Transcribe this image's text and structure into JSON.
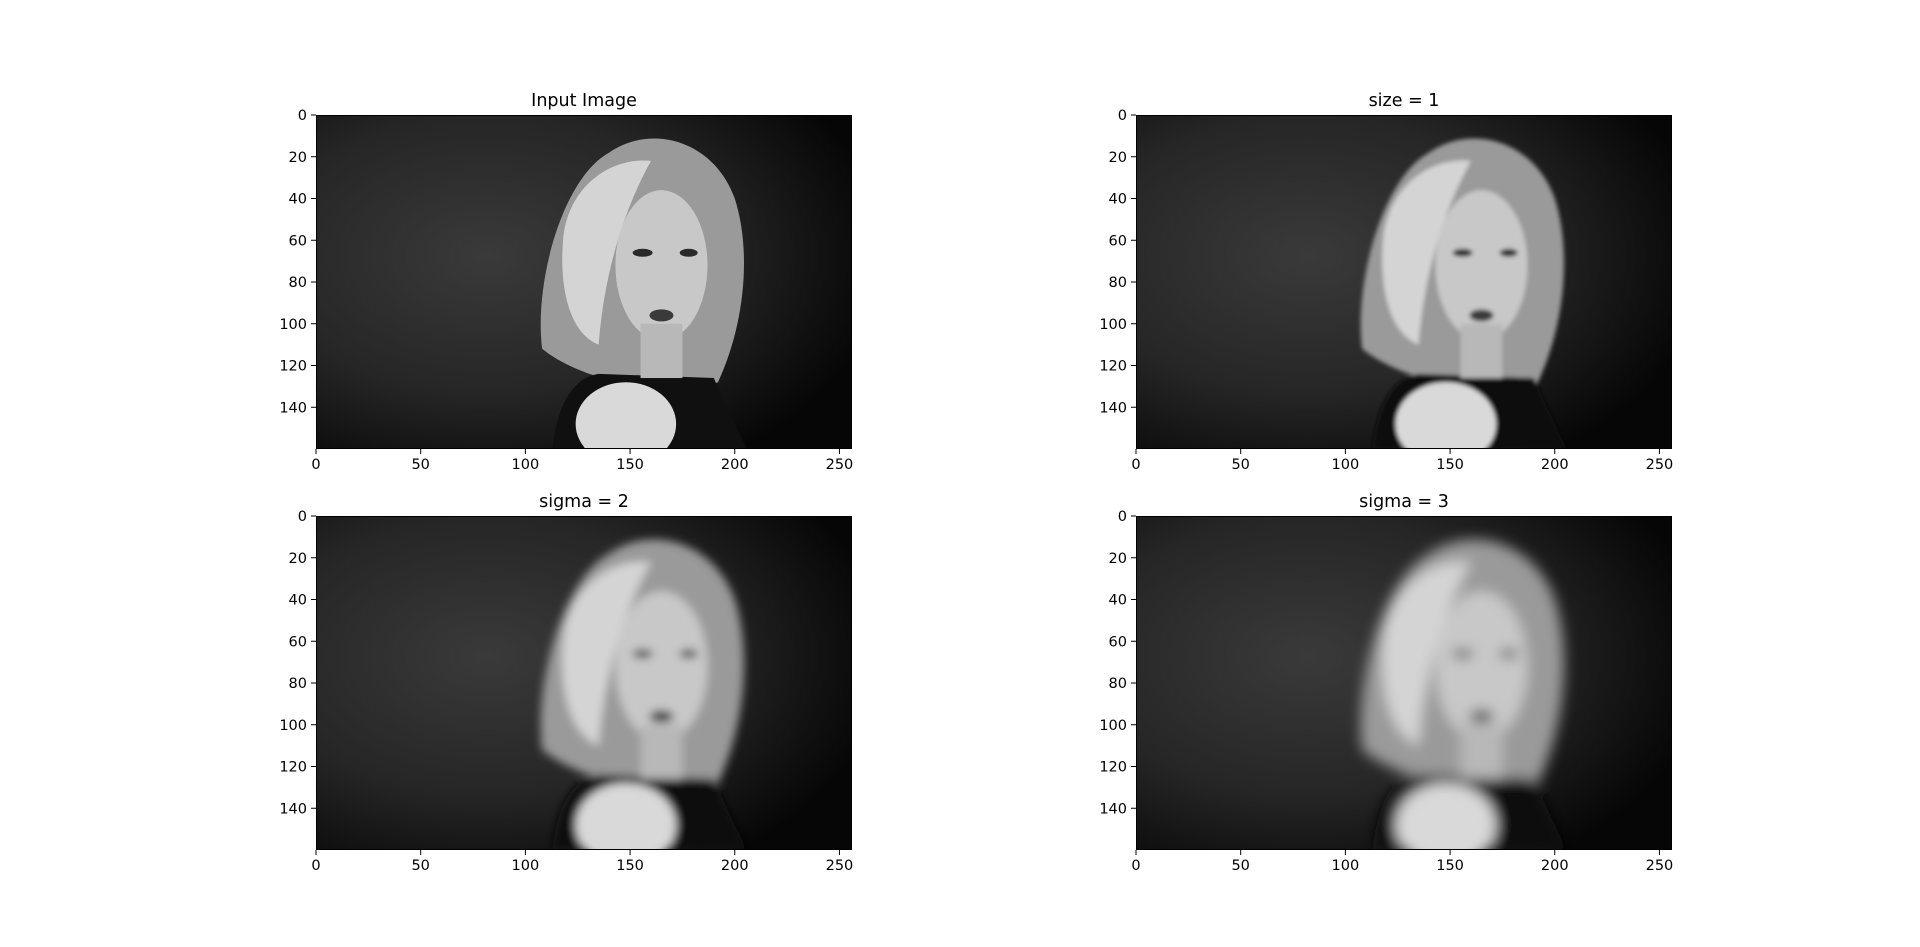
{
  "figure": {
    "background": "#ffffff",
    "text_color": "#000000"
  },
  "chart_data": [
    {
      "type": "image",
      "title": "Input Image",
      "colormap": "gray",
      "blur_level": 0,
      "image_shape": [
        160,
        256
      ],
      "xlim": [
        0,
        256
      ],
      "ylim": [
        160,
        0
      ],
      "xticks": [
        0,
        50,
        100,
        150,
        200,
        250
      ],
      "yticks": [
        0,
        20,
        40,
        60,
        80,
        100,
        120,
        140
      ],
      "xlabel": "",
      "ylabel": ""
    },
    {
      "type": "image",
      "title": "size = 1",
      "colormap": "gray",
      "blur_level": 1,
      "image_shape": [
        160,
        256
      ],
      "xlim": [
        0,
        256
      ],
      "ylim": [
        160,
        0
      ],
      "xticks": [
        0,
        50,
        100,
        150,
        200,
        250
      ],
      "yticks": [
        0,
        20,
        40,
        60,
        80,
        100,
        120,
        140
      ],
      "xlabel": "",
      "ylabel": ""
    },
    {
      "type": "image",
      "title": "sigma = 2",
      "colormap": "gray",
      "blur_level": 2,
      "image_shape": [
        160,
        256
      ],
      "xlim": [
        0,
        256
      ],
      "ylim": [
        160,
        0
      ],
      "xticks": [
        0,
        50,
        100,
        150,
        200,
        250
      ],
      "yticks": [
        0,
        20,
        40,
        60,
        80,
        100,
        120,
        140
      ],
      "xlabel": "",
      "ylabel": ""
    },
    {
      "type": "image",
      "title": "sigma = 3",
      "colormap": "gray",
      "blur_level": 3,
      "image_shape": [
        160,
        256
      ],
      "xlim": [
        0,
        256
      ],
      "ylim": [
        160,
        0
      ],
      "xticks": [
        0,
        50,
        100,
        150,
        200,
        250
      ],
      "yticks": [
        0,
        20,
        40,
        60,
        80,
        100,
        120,
        140
      ],
      "xlabel": "",
      "ylabel": ""
    }
  ]
}
